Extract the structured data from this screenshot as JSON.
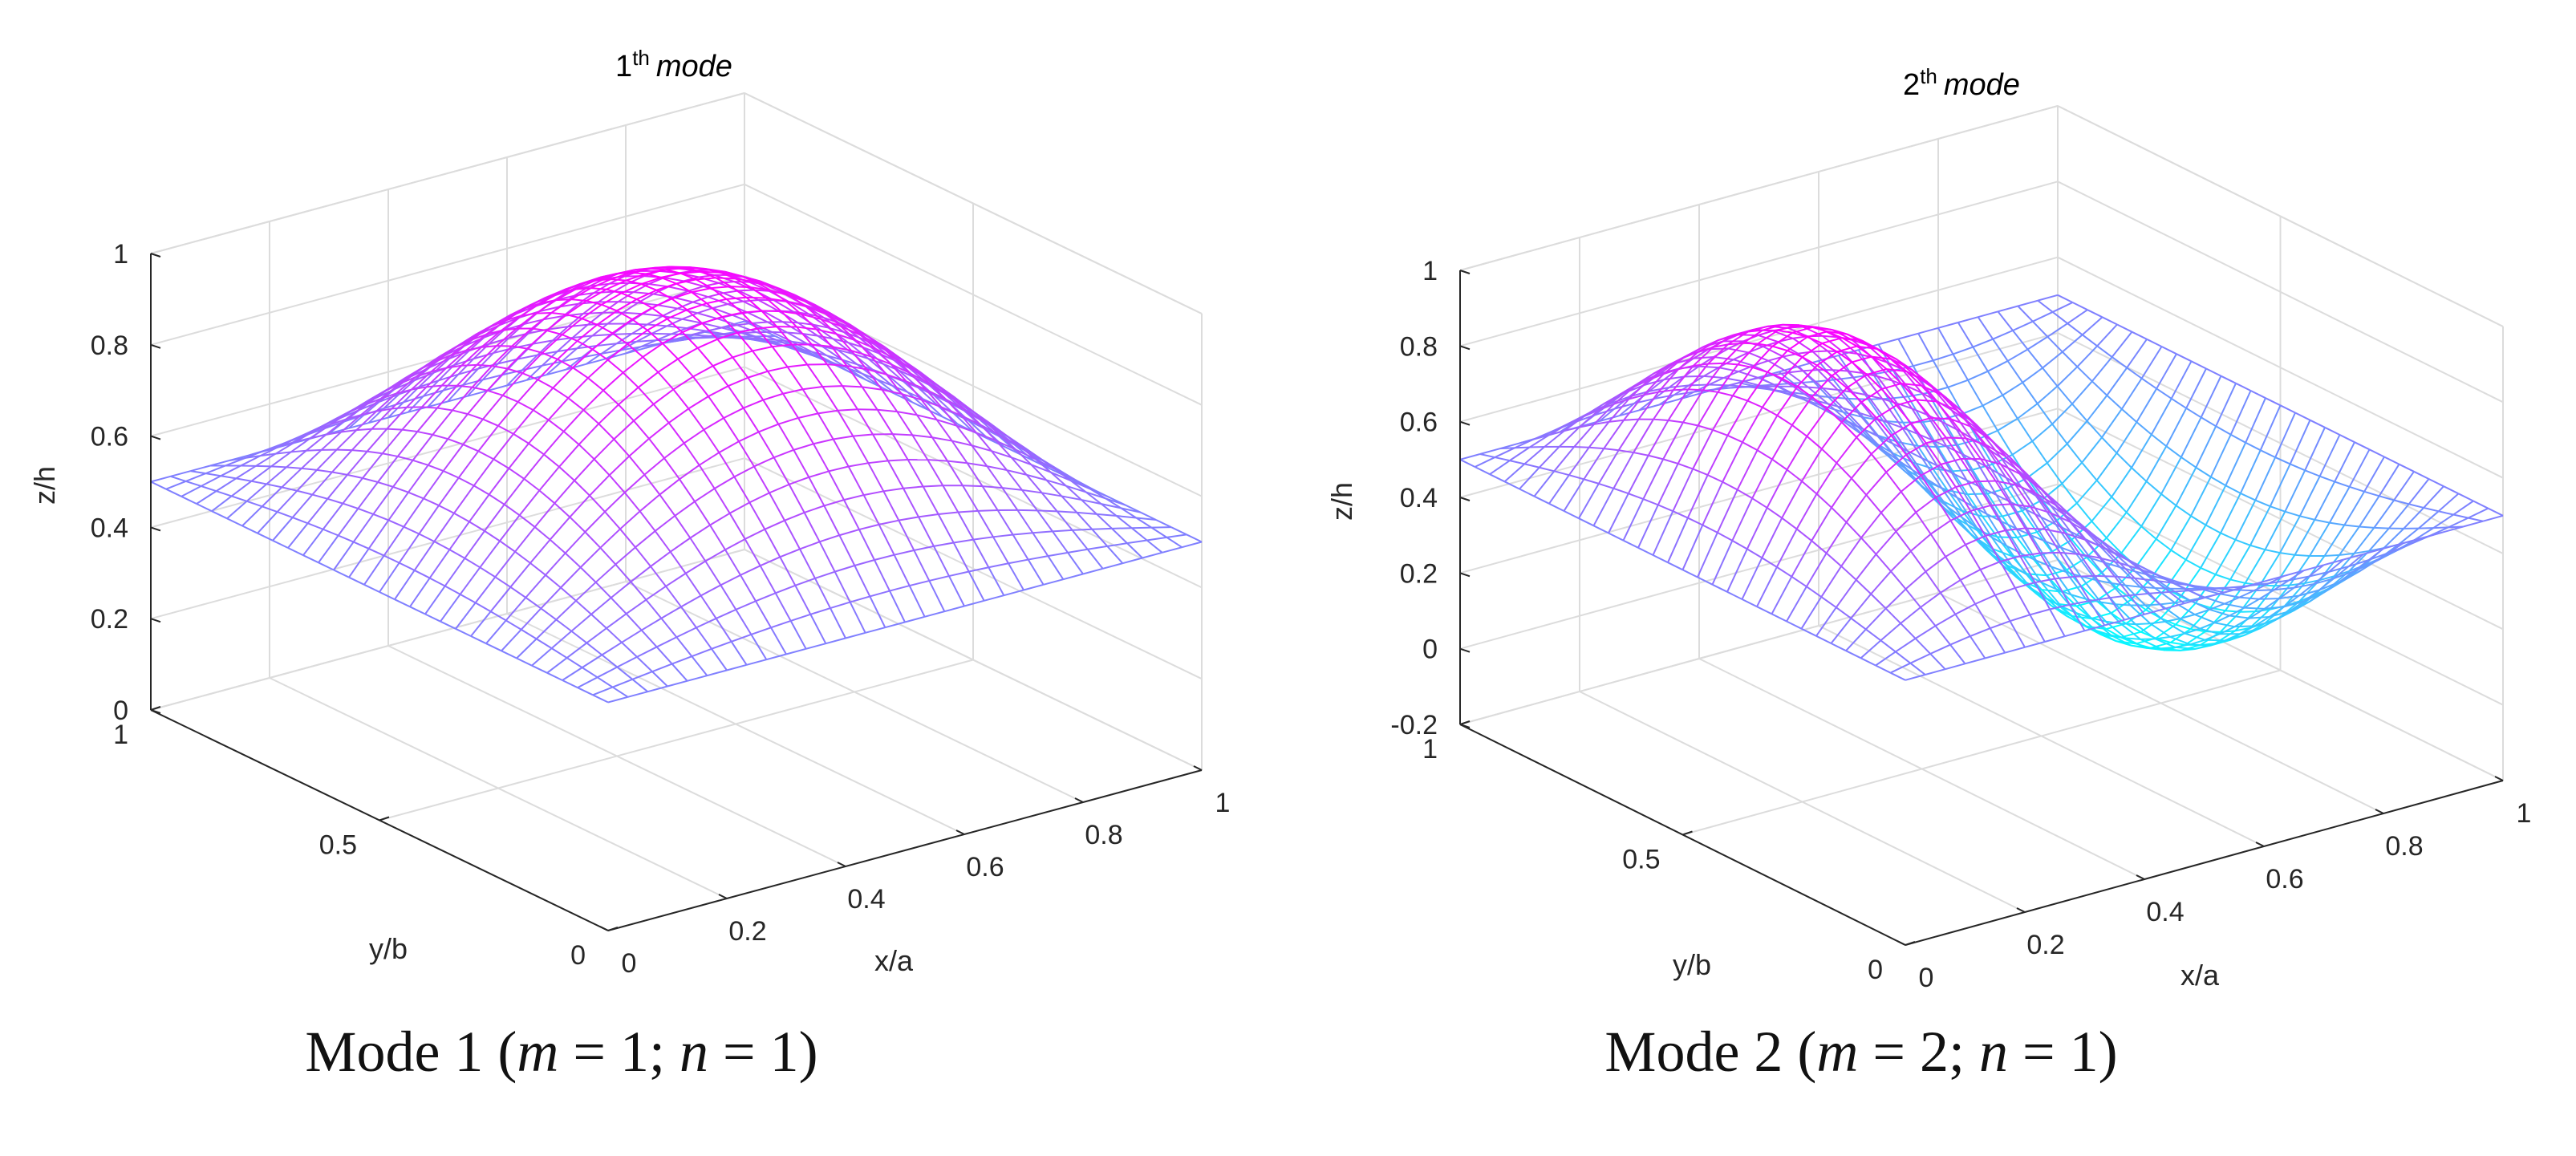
{
  "chart_data": [
    {
      "type": "surface",
      "title": {
        "main": "1",
        "sup": "th",
        "italic": "mode"
      },
      "caption": {
        "prefix": "Mode 1 (",
        "m_var": "m",
        "m_eq": " = 1; ",
        "n_var": "n",
        "n_eq": " = 1)"
      },
      "xlabel": "x/a",
      "ylabel": "y/b",
      "zlabel": "z/h",
      "m": 1,
      "n": 1,
      "xlim": [
        0,
        1
      ],
      "ylim": [
        0,
        1
      ],
      "zlim": [
        0,
        1
      ],
      "x_ticks": [
        0,
        0.2,
        0.4,
        0.6,
        0.8,
        1
      ],
      "x_tick_labels": [
        "0",
        "0.2",
        "0.4",
        "0.6",
        "0.8",
        "1"
      ],
      "y_ticks": [
        0,
        0.5,
        1
      ],
      "y_tick_labels": [
        "0",
        "0.5",
        "1"
      ],
      "z_ticks": [
        0,
        0.2,
        0.4,
        0.6,
        0.8,
        1
      ],
      "z_tick_labels": [
        "0",
        "0.2",
        "0.4",
        "0.6",
        "0.8",
        "1"
      ],
      "surface": "z = 0.5 + 0.5*sin(m*pi*x)*sin(n*pi*y)",
      "grid_points": 31,
      "colormap": [
        "#00ffff",
        "#ff00ff"
      ],
      "grid": true
    },
    {
      "type": "surface",
      "title": {
        "main": "2",
        "sup": "th",
        "italic": "mode"
      },
      "caption": {
        "prefix": "Mode 2 (",
        "m_var": "m",
        "m_eq": " = 2; ",
        "n_var": "n",
        "n_eq": " = 1)"
      },
      "xlabel": "x/a",
      "ylabel": "y/b",
      "zlabel": "z/h",
      "m": 2,
      "n": 1,
      "xlim": [
        0,
        1
      ],
      "ylim": [
        0,
        1
      ],
      "zlim": [
        -0.2,
        1
      ],
      "x_ticks": [
        0,
        0.2,
        0.4,
        0.6,
        0.8,
        1
      ],
      "x_tick_labels": [
        "0",
        "0.2",
        "0.4",
        "0.6",
        "0.8",
        "1"
      ],
      "y_ticks": [
        0,
        0.5,
        1
      ],
      "y_tick_labels": [
        "0",
        "0.5",
        "1"
      ],
      "z_ticks": [
        -0.2,
        0,
        0.2,
        0.4,
        0.6,
        0.8,
        1
      ],
      "z_tick_labels": [
        "-0.2",
        "0",
        "0.2",
        "0.4",
        "0.6",
        "0.8",
        "1"
      ],
      "surface": "z = 0.5 + 0.5*sin(m*pi*x)*sin(n*pi*y)",
      "grid_points": 31,
      "colormap": [
        "#00ffff",
        "#ff00ff"
      ],
      "grid": true
    }
  ]
}
